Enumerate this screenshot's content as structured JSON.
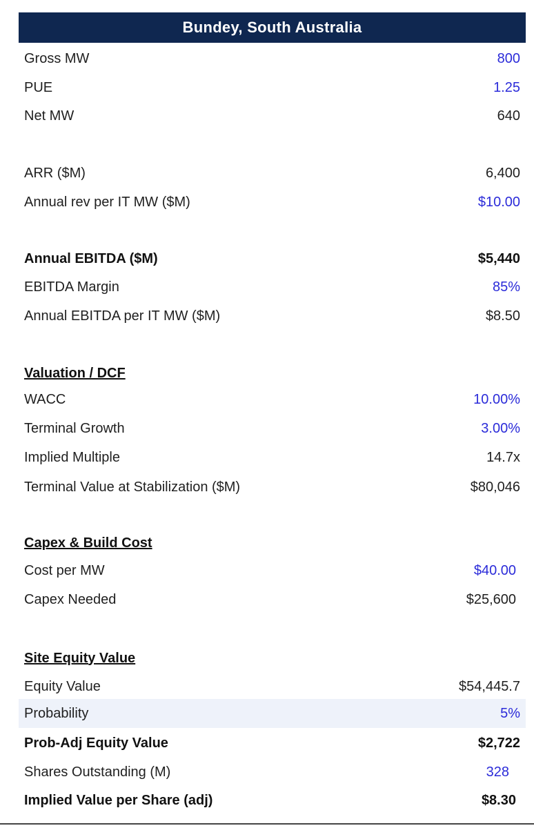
{
  "title": "Bundey, South Australia",
  "rows": [
    {
      "label": "Gross MW",
      "value": "800",
      "input": true
    },
    {
      "label": "PUE",
      "value": "1.25",
      "input": true
    },
    {
      "label": "Net MW",
      "value": "640",
      "input": false
    },
    {
      "label": "ARR ($M)",
      "value": "6,400",
      "input": false
    },
    {
      "label": "Annual rev per IT MW ($M)",
      "value": "$10.00",
      "input": true
    },
    {
      "label": "Annual EBITDA ($M)",
      "value": "$5,440",
      "input": false
    },
    {
      "label": "EBITDA Margin",
      "value": "85%",
      "input": true
    },
    {
      "label": "Annual EBITDA per IT MW ($M)",
      "value": "$8.50",
      "input": false
    },
    {
      "label": "Valuation / DCF",
      "value": ""
    },
    {
      "label": "WACC",
      "value": "10.00%",
      "input": true
    },
    {
      "label": "Terminal Growth",
      "value": "3.00%",
      "input": true
    },
    {
      "label": "Implied Multiple",
      "value": "14.7x",
      "input": false
    },
    {
      "label": "Terminal Value at Stabilization ($M)",
      "value": "$80,046",
      "input": false
    },
    {
      "label": "Capex & Build Cost",
      "value": ""
    },
    {
      "label": "Cost per MW",
      "value": "$40.00",
      "input": true
    },
    {
      "label": "Capex Needed",
      "value": "$25,600",
      "input": false
    },
    {
      "label": "Site Equity Value",
      "value": ""
    },
    {
      "label": "Equity Value",
      "value": "$54,445.7",
      "input": false
    },
    {
      "label": "Probability",
      "value": "5%",
      "input": true
    },
    {
      "label": "Prob-Adj Equity Value",
      "value": "$2,722",
      "input": false
    },
    {
      "label": "Shares Outstanding (M)",
      "value": "328",
      "input": true
    },
    {
      "label": "Implied Value per Share (adj)",
      "value": "$8.30",
      "input": false
    }
  ],
  "colors": {
    "header_bg": "#0f2750",
    "input_blue": "#2b2bd9",
    "highlight_row": "#eef2fa"
  }
}
